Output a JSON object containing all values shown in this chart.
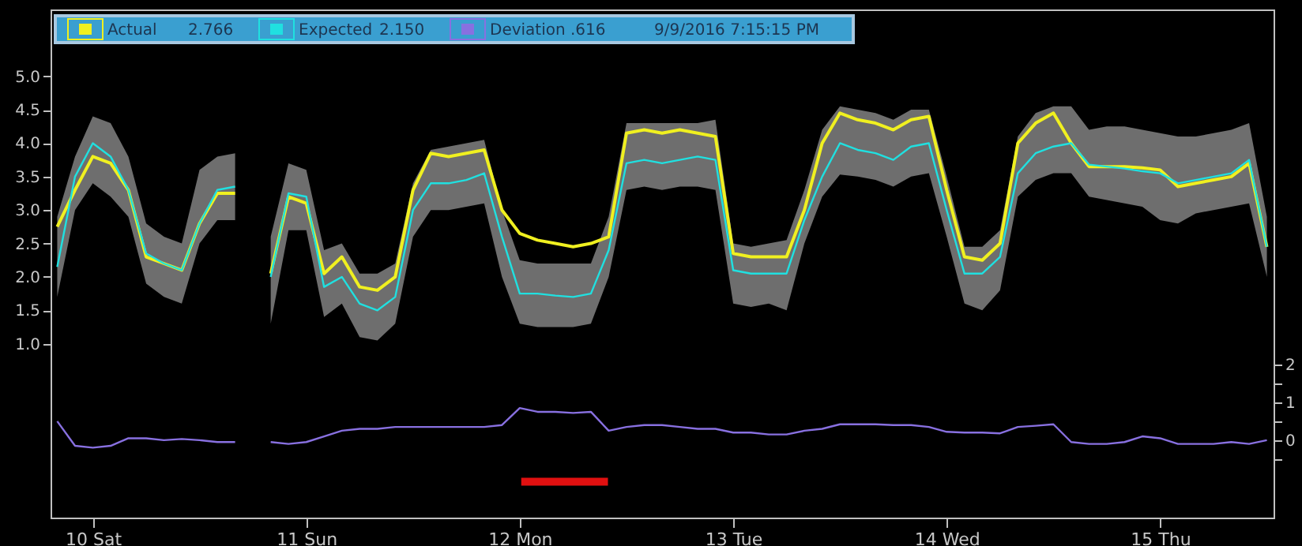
{
  "chart_data": {
    "type": "line",
    "x": [
      "2016-09-09T20:00",
      "2016-09-09T22:00",
      "2016-09-10T00:00",
      "2016-09-10T02:00",
      "2016-09-10T04:00",
      "2016-09-10T06:00",
      "2016-09-10T08:00",
      "2016-09-10T10:00",
      "2016-09-10T12:00",
      "2016-09-10T14:00",
      "2016-09-10T16:00",
      "2016-09-10T18:00",
      "2016-09-10T20:00",
      "2016-09-10T22:00",
      "2016-09-11T00:00",
      "2016-09-11T02:00",
      "2016-09-11T04:00",
      "2016-09-11T06:00",
      "2016-09-11T08:00",
      "2016-09-11T10:00",
      "2016-09-11T12:00",
      "2016-09-11T14:00",
      "2016-09-11T16:00",
      "2016-09-11T18:00",
      "2016-09-11T20:00",
      "2016-09-11T22:00",
      "2016-09-12T00:00",
      "2016-09-12T02:00",
      "2016-09-12T04:00",
      "2016-09-12T06:00",
      "2016-09-12T08:00",
      "2016-09-12T10:00",
      "2016-09-12T12:00",
      "2016-09-12T14:00",
      "2016-09-12T16:00",
      "2016-09-12T18:00",
      "2016-09-12T20:00",
      "2016-09-12T22:00",
      "2016-09-13T00:00",
      "2016-09-13T02:00",
      "2016-09-13T04:00",
      "2016-09-13T06:00",
      "2016-09-13T08:00",
      "2016-09-13T10:00",
      "2016-09-13T12:00",
      "2016-09-13T14:00",
      "2016-09-13T16:00",
      "2016-09-13T18:00",
      "2016-09-13T20:00",
      "2016-09-13T22:00",
      "2016-09-14T00:00",
      "2016-09-14T02:00",
      "2016-09-14T04:00",
      "2016-09-14T06:00",
      "2016-09-14T08:00",
      "2016-09-14T10:00",
      "2016-09-14T12:00",
      "2016-09-14T14:00",
      "2016-09-14T16:00",
      "2016-09-14T18:00",
      "2016-09-14T20:00",
      "2016-09-14T22:00",
      "2016-09-15T00:00",
      "2016-09-15T02:00",
      "2016-09-15T04:00",
      "2016-09-15T06:00",
      "2016-09-15T08:00",
      "2016-09-15T10:00",
      "2016-09-15T12:00"
    ],
    "series": [
      {
        "name": "Actual",
        "color": "#f0f020",
        "values": [
          2.75,
          3.3,
          3.8,
          3.7,
          3.3,
          2.3,
          2.2,
          2.1,
          2.8,
          3.25,
          3.25,
          null,
          2.05,
          3.2,
          3.1,
          2.05,
          2.3,
          1.85,
          1.8,
          2.0,
          3.3,
          3.85,
          3.8,
          3.85,
          3.9,
          3.0,
          2.65,
          2.55,
          2.5,
          2.45,
          2.5,
          2.6,
          4.15,
          4.2,
          4.15,
          4.2,
          4.15,
          4.1,
          2.35,
          2.3,
          2.3,
          2.3,
          3.0,
          4.0,
          4.45,
          4.35,
          4.3,
          4.2,
          4.35,
          4.4,
          3.3,
          2.3,
          2.25,
          2.5,
          4.0,
          4.3,
          4.45,
          4.0,
          3.65,
          3.65,
          3.65,
          3.63,
          3.6,
          3.35,
          3.4,
          3.45,
          3.5,
          3.7,
          2.45
        ]
      },
      {
        "name": "Expected",
        "color": "#20e0e0",
        "values": [
          2.15,
          3.5,
          4.0,
          3.8,
          3.3,
          2.35,
          2.2,
          2.1,
          2.8,
          3.3,
          3.35,
          null,
          2.0,
          3.25,
          3.2,
          1.85,
          2.0,
          1.6,
          1.5,
          1.7,
          3.0,
          3.4,
          3.4,
          3.45,
          3.55,
          2.6,
          1.75,
          1.75,
          1.72,
          1.7,
          1.75,
          2.4,
          3.7,
          3.75,
          3.7,
          3.75,
          3.8,
          3.75,
          2.1,
          2.05,
          2.05,
          2.05,
          2.85,
          3.5,
          4.0,
          3.9,
          3.85,
          3.75,
          3.95,
          4.0,
          3.0,
          2.05,
          2.05,
          2.3,
          3.55,
          3.85,
          3.95,
          4.0,
          3.68,
          3.65,
          3.62,
          3.58,
          3.55,
          3.4,
          3.45,
          3.5,
          3.55,
          3.75,
          2.45
        ],
        "lower": [
          1.7,
          3.0,
          3.4,
          3.2,
          2.9,
          1.9,
          1.7,
          1.6,
          2.5,
          2.85,
          2.85,
          null,
          1.3,
          2.7,
          2.7,
          1.4,
          1.6,
          1.1,
          1.05,
          1.3,
          2.6,
          3.0,
          3.0,
          3.05,
          3.1,
          2.0,
          1.3,
          1.25,
          1.25,
          1.25,
          1.3,
          2.0,
          3.3,
          3.35,
          3.3,
          3.35,
          3.35,
          3.3,
          1.6,
          1.55,
          1.6,
          1.5,
          2.5,
          3.2,
          3.53,
          3.5,
          3.45,
          3.35,
          3.5,
          3.55,
          2.6,
          1.6,
          1.5,
          1.8,
          3.2,
          3.45,
          3.55,
          3.55,
          3.2,
          3.15,
          3.1,
          3.05,
          2.85,
          2.8,
          2.95,
          3.0,
          3.05,
          3.1,
          2.0
        ],
        "upper": [
          2.9,
          3.8,
          4.4,
          4.3,
          3.8,
          2.8,
          2.6,
          2.5,
          3.6,
          3.8,
          3.85,
          null,
          2.6,
          3.7,
          3.6,
          2.4,
          2.5,
          2.05,
          2.05,
          2.2,
          3.4,
          3.9,
          3.95,
          4.0,
          4.05,
          3.0,
          2.25,
          2.2,
          2.2,
          2.2,
          2.2,
          2.9,
          4.3,
          4.3,
          4.3,
          4.3,
          4.3,
          4.35,
          2.5,
          2.45,
          2.5,
          2.55,
          3.3,
          4.2,
          4.55,
          4.5,
          4.45,
          4.35,
          4.5,
          4.5,
          3.5,
          2.45,
          2.45,
          2.7,
          4.1,
          4.45,
          4.55,
          4.55,
          4.2,
          4.25,
          4.25,
          4.2,
          4.15,
          4.1,
          4.1,
          4.15,
          4.2,
          4.3,
          2.9
        ]
      },
      {
        "name": "Deviation",
        "color": "#8870e0",
        "axis": "y2",
        "values": [
          0.5,
          -0.15,
          -0.2,
          -0.15,
          0.05,
          0.05,
          0.0,
          0.03,
          0.0,
          -0.05,
          -0.05,
          null,
          -0.05,
          -0.1,
          -0.05,
          0.1,
          0.25,
          0.3,
          0.3,
          0.35,
          0.35,
          0.35,
          0.35,
          0.35,
          0.35,
          0.4,
          0.85,
          0.75,
          0.75,
          0.72,
          0.75,
          0.25,
          0.35,
          0.4,
          0.4,
          0.35,
          0.3,
          0.3,
          0.2,
          0.2,
          0.15,
          0.15,
          0.25,
          0.3,
          0.42,
          0.42,
          0.42,
          0.4,
          0.4,
          0.35,
          0.22,
          0.2,
          0.2,
          0.18,
          0.35,
          0.38,
          0.42,
          -0.05,
          -0.1,
          -0.1,
          -0.05,
          0.1,
          0.05,
          -0.1,
          -0.1,
          -0.1,
          -0.05,
          -0.1,
          0.0
        ]
      },
      {
        "color": "#e01010",
        "axis": "y2",
        "x": [
          "2016-09-12T00:10",
          "2016-09-12T09:55"
        ],
        "values": [
          -1.1,
          -1.1
        ]
      }
    ],
    "xlim": [
      "2016-09-09T19:15",
      "2016-09-15T12:45"
    ],
    "xticks": [
      {
        "value": "2016-09-10",
        "label": "10 Sat"
      },
      {
        "value": "2016-09-11",
        "label": "11 Sun"
      },
      {
        "value": "2016-09-12",
        "label": "12 Mon"
      },
      {
        "value": "2016-09-13",
        "label": "13 Tue"
      },
      {
        "value": "2016-09-14",
        "label": "14 Wed"
      },
      {
        "value": "2016-09-15",
        "label": "15 Thu"
      }
    ],
    "ylim": [
      -1.6,
      6.0
    ],
    "yticks": [
      {
        "value": 1,
        "label": "1.0"
      },
      {
        "value": 1.5,
        "label": "1.5"
      },
      {
        "value": 2,
        "label": "2.0"
      },
      {
        "value": 2.5,
        "label": "2.5"
      },
      {
        "value": 3,
        "label": "3.0"
      },
      {
        "value": 3.5,
        "label": "3.5"
      },
      {
        "value": 4,
        "label": "4.0"
      },
      {
        "value": 4.5,
        "label": "4.5"
      },
      {
        "value": 5,
        "label": "5.0"
      }
    ],
    "y2lim": [
      -2.05,
      11.4
    ],
    "y2ticks": [
      {
        "value": -0.5,
        "label": null
      },
      {
        "value": 0,
        "label": "0"
      },
      {
        "value": 0.5,
        "label": null
      },
      {
        "value": 1,
        "label": "1"
      },
      {
        "value": 1.5,
        "label": null
      },
      {
        "value": 2,
        "label": "2"
      }
    ],
    "annotations": [
      "2.766",
      "2.150",
      ".616",
      "9/9/2016 7:15:15 PM"
    ],
    "legend": "top left",
    "grid": false,
    "line_style": "solid"
  }
}
